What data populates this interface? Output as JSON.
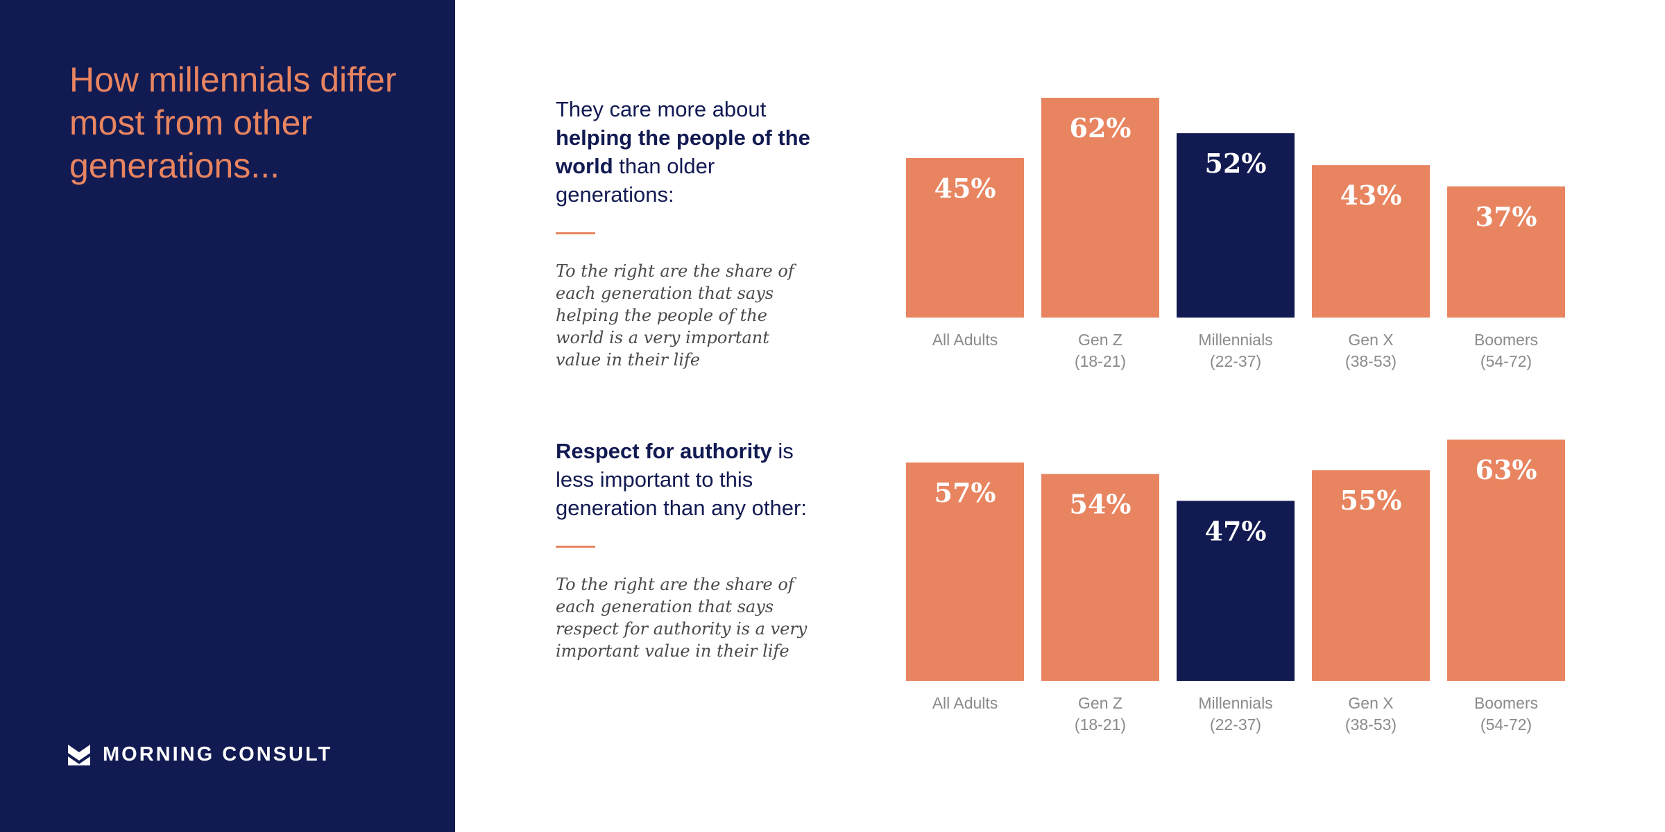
{
  "headline": "How millennials differ most from other generations...",
  "brand": {
    "name": "MORNING CONSULT",
    "logo_icon": "morning-consult-logo-icon"
  },
  "colors": {
    "sidebar": "#121a52",
    "accent": "#e88560",
    "highlight_bar": "#121a52",
    "bar": "#e88560"
  },
  "panels": [
    {
      "statement_pre": "They care more about ",
      "statement_bold": "helping the people of the world",
      "statement_post": " than older generations:",
      "note": "To the right are the share of each generation that says helping the people of the world is a very important value in their life"
    },
    {
      "statement_pre": "",
      "statement_bold": "Respect for authority",
      "statement_post": " is less important to this generation than any other:",
      "note": "To the right are the share of each generation that says respect for authority is a very important value in their life"
    }
  ],
  "chart_data": [
    {
      "type": "bar",
      "categories": [
        "All Adults",
        "Gen Z\n(18-21)",
        "Millennials\n(22-37)",
        "Gen X\n(38-53)",
        "Boomers\n(54-72)"
      ],
      "values": [
        45,
        62,
        52,
        43,
        37
      ],
      "data_labels": [
        "45%",
        "62%",
        "52%",
        "43%",
        "37%"
      ],
      "highlight_index": 2,
      "unit": "%",
      "ylim": [
        0,
        62
      ],
      "grid": false,
      "axes_visible": false
    },
    {
      "type": "bar",
      "categories": [
        "All Adults",
        "Gen Z\n(18-21)",
        "Millennials\n(22-37)",
        "Gen X\n(38-53)",
        "Boomers\n(54-72)"
      ],
      "values": [
        57,
        54,
        47,
        55,
        63
      ],
      "data_labels": [
        "57%",
        "54%",
        "47%",
        "55%",
        "63%"
      ],
      "highlight_index": 2,
      "unit": "%",
      "ylim": [
        0,
        63
      ],
      "grid": false,
      "axes_visible": false
    }
  ]
}
